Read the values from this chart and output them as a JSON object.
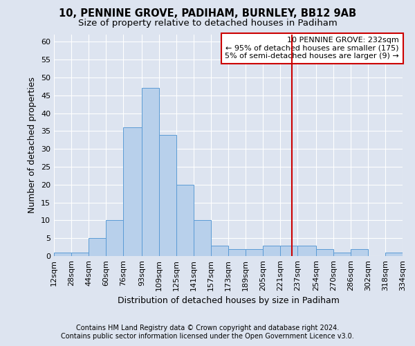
{
  "title": "10, PENNINE GROVE, PADIHAM, BURNLEY, BB12 9AB",
  "subtitle": "Size of property relative to detached houses in Padiham",
  "xlabel": "Distribution of detached houses by size in Padiham",
  "ylabel": "Number of detached properties",
  "footer_line1": "Contains HM Land Registry data © Crown copyright and database right 2024.",
  "footer_line2": "Contains public sector information licensed under the Open Government Licence v3.0.",
  "bin_edges": [
    12,
    28,
    44,
    60,
    76,
    93,
    109,
    125,
    141,
    157,
    173,
    189,
    205,
    221,
    237,
    254,
    270,
    286,
    302,
    318,
    334
  ],
  "bin_labels": [
    "12sqm",
    "28sqm",
    "44sqm",
    "60sqm",
    "76sqm",
    "93sqm",
    "109sqm",
    "125sqm",
    "141sqm",
    "157sqm",
    "173sqm",
    "189sqm",
    "205sqm",
    "221sqm",
    "237sqm",
    "254sqm",
    "270sqm",
    "286sqm",
    "302sqm",
    "318sqm",
    "334sqm"
  ],
  "bar_heights": [
    1,
    1,
    5,
    10,
    36,
    47,
    34,
    20,
    10,
    3,
    2,
    2,
    3,
    3,
    3,
    2,
    1,
    2,
    0,
    1
  ],
  "bar_color": "#b8d0eb",
  "bar_edge_color": "#5b9bd5",
  "vline_x": 232,
  "vline_color": "#cc0000",
  "annotation_text": "10 PENNINE GROVE: 232sqm\n← 95% of detached houses are smaller (175)\n5% of semi-detached houses are larger (9) →",
  "annotation_box_color": "#ffffff",
  "annotation_edge_color": "#cc0000",
  "ylim": [
    0,
    62
  ],
  "yticks": [
    0,
    5,
    10,
    15,
    20,
    25,
    30,
    35,
    40,
    45,
    50,
    55,
    60
  ],
  "bg_color": "#dde4f0",
  "plot_bg_color": "#dde4f0",
  "grid_color": "#ffffff",
  "title_fontsize": 10.5,
  "subtitle_fontsize": 9.5,
  "label_fontsize": 9,
  "tick_fontsize": 8,
  "footer_fontsize": 7,
  "annotation_fontsize": 8
}
